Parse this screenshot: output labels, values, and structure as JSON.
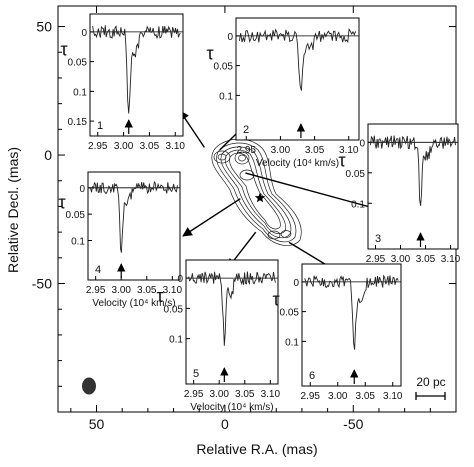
{
  "chart_data": {
    "type": "scatter",
    "main_axes": {
      "xlabel": "Relative R.A. (mas)",
      "ylabel": "Relative Decl. (mas)",
      "xlim": [
        65,
        -90
      ],
      "ylim": [
        -100,
        58
      ],
      "x_ticks": [
        {
          "value": 50,
          "label": "50"
        },
        {
          "value": 0,
          "label": "0"
        },
        {
          "value": -50,
          "label": "-50"
        }
      ],
      "y_ticks": [
        {
          "value": 50,
          "label": "50"
        },
        {
          "value": 0,
          "label": "0"
        },
        {
          "value": -50,
          "label": "-50"
        }
      ],
      "scale_bar_label": "20 pc",
      "component_marker": "star",
      "beam": "filled-ellipse"
    },
    "spectrum_axes": {
      "xlabel": "Velocity (10⁴ km/s)",
      "ylabel": "τ",
      "x_ticks": [
        "2.95",
        "3.00",
        "3.05",
        "3.10"
      ],
      "tau_ticks": [
        "0",
        "0.05",
        "0.1",
        "0.15"
      ]
    },
    "spectra": [
      {
        "label": "1",
        "tau_ticks": [
          "0",
          "0.05",
          "0.1",
          "0.15"
        ],
        "velocity_min": 3.01,
        "peak_tau": 0.14,
        "shows_xlabel": false,
        "pointer_source": [
          8,
          3
        ]
      },
      {
        "label": "2",
        "tau_ticks": [
          "0",
          "0.05",
          "0.1"
        ],
        "velocity_min": 3.03,
        "peak_tau": 0.09,
        "shows_xlabel": true,
        "pointer_source": [
          2,
          2
        ]
      },
      {
        "label": "3",
        "tau_ticks": [
          "0",
          "0.05",
          "0.1"
        ],
        "velocity_min": 3.04,
        "peak_tau": 0.1,
        "shows_xlabel": false,
        "pointer_source": [
          -8,
          -7
        ]
      },
      {
        "label": "4",
        "tau_ticks": [
          "0",
          "0.05",
          "0.1"
        ],
        "velocity_min": 3.0,
        "peak_tau": 0.12,
        "shows_xlabel": true,
        "pointer_source": [
          -6,
          -17
        ]
      },
      {
        "label": "5",
        "tau_ticks": [
          "0",
          "0.05",
          "0.1"
        ],
        "velocity_min": 3.01,
        "peak_tau": 0.1,
        "shows_xlabel": true,
        "pointer_source": [
          -12,
          -30
        ]
      },
      {
        "label": "6",
        "tau_ticks": [
          "0",
          "0.05",
          "0.1"
        ],
        "velocity_min": 3.03,
        "peak_tau": 0.11,
        "shows_xlabel": false,
        "pointer_source": [
          -25,
          -34
        ]
      }
    ]
  }
}
